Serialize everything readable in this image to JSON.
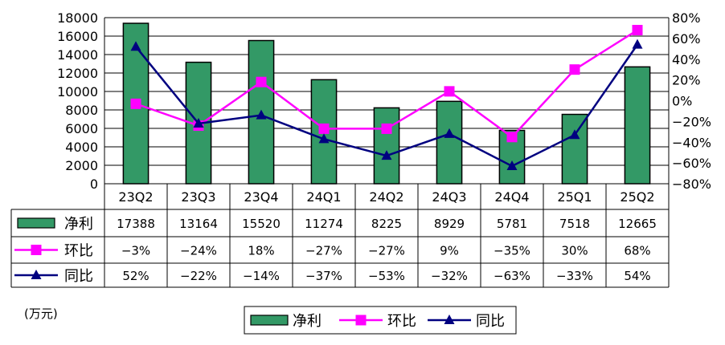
{
  "chart_data": {
    "type": "bar",
    "categories": [
      "23Q2",
      "23Q3",
      "23Q4",
      "24Q1",
      "24Q2",
      "24Q3",
      "24Q4",
      "25Q1",
      "25Q2"
    ],
    "series": [
      {
        "name": "净利",
        "kind": "bar",
        "axis": "left",
        "values": [
          17388,
          13164,
          15520,
          11274,
          8225,
          8929,
          5781,
          7518,
          12665
        ],
        "labels": [
          "17388",
          "13164",
          "15520",
          "11274",
          "8225",
          "8929",
          "5781",
          "7518",
          "12665"
        ],
        "color": "#339966"
      },
      {
        "name": "环比",
        "kind": "line",
        "marker": "square",
        "axis": "right",
        "values": [
          -3,
          -24,
          18,
          -27,
          -27,
          9,
          -35,
          30,
          68
        ],
        "labels": [
          "-3%",
          "-24%",
          "18%",
          "-27%",
          "-27%",
          "9%",
          "-35%",
          "30%",
          "68%"
        ],
        "color": "#FF00FF"
      },
      {
        "name": "同比",
        "kind": "line",
        "marker": "triangle",
        "axis": "right",
        "values": [
          52,
          -22,
          -14,
          -37,
          -53,
          -32,
          -63,
          -33,
          54
        ],
        "labels": [
          "52%",
          "-22%",
          "-14%",
          "-37%",
          "-53%",
          "-32%",
          "-63%",
          "-33%",
          "54%"
        ],
        "color": "#000080"
      }
    ],
    "ylim_left": [
      0,
      18000
    ],
    "yticks_left": [
      "0",
      "2000",
      "4000",
      "6000",
      "8000",
      "10000",
      "12000",
      "14000",
      "16000",
      "18000"
    ],
    "ylim_right": [
      -80,
      80
    ],
    "yticks_right": [
      "-80%",
      "-60%",
      "-40%",
      "-20%",
      "0%",
      "20%",
      "40%",
      "60%",
      "80%"
    ],
    "unit_label": "(万元)",
    "grid": true,
    "legend_position": "bottom",
    "data_table": true
  }
}
